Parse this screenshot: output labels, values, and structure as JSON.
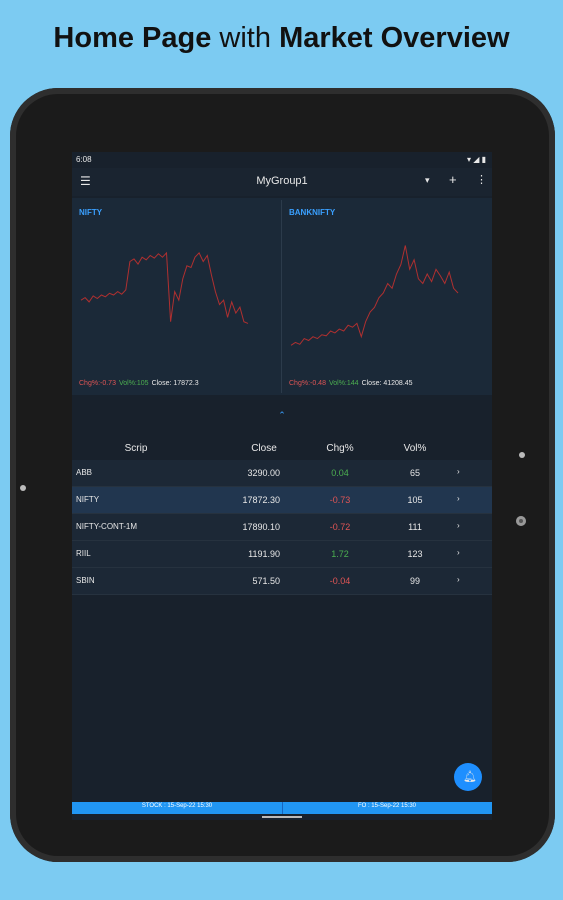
{
  "header": {
    "title_bold_1": "Home Page",
    "title_normal": "with",
    "title_bold_2": "Market Overview"
  },
  "status_bar": {
    "time": "6:08"
  },
  "app_bar": {
    "title": "MyGroup1"
  },
  "charts": [
    {
      "name": "NIFTY",
      "chg": "Chg%:-0.73",
      "vol": "Vol%:105",
      "close": "Close: 17872.3",
      "ylim": [
        0,
        100
      ],
      "points": [
        30,
        33,
        28,
        35,
        32,
        36,
        34,
        38,
        36,
        40,
        37,
        42,
        75,
        78,
        72,
        80,
        77,
        82,
        79,
        84,
        80,
        85,
        5,
        40,
        30,
        55,
        70,
        68,
        80,
        85,
        75,
        82,
        60,
        40,
        25,
        30,
        10,
        28,
        15,
        22,
        5,
        3
      ]
    },
    {
      "name": "BANKNIFTY",
      "chg": "Chg%:-0.48",
      "vol": "Vol%:144",
      "close": "Close: 41208.45",
      "ylim": [
        0,
        120
      ],
      "points": [
        5,
        8,
        6,
        12,
        10,
        14,
        12,
        16,
        15,
        20,
        18,
        22,
        20,
        26,
        24,
        28,
        14,
        30,
        40,
        45,
        55,
        60,
        70,
        65,
        80,
        90,
        110,
        85,
        95,
        75,
        70,
        80,
        72,
        85,
        78,
        70,
        82,
        65,
        60
      ]
    }
  ],
  "table": {
    "columns": [
      "Scrip",
      "Close",
      "Chg%",
      "Vol%"
    ],
    "rows": [
      [
        "ABB",
        "3290.00",
        "0.04",
        "65"
      ],
      [
        "NIFTY",
        "17872.30",
        "-0.73",
        "105"
      ],
      [
        "NIFTY-CONT-1M",
        "17890.10",
        "-0.72",
        "111"
      ],
      [
        "RIIL",
        "1191.90",
        "1.72",
        "123"
      ],
      [
        "SBIN",
        "571.50",
        "-0.04",
        "99"
      ]
    ]
  },
  "footer": {
    "stock": "STOCK : 15-Sep-22  15:30",
    "fo": "FO : 15-Sep-22  15:30"
  }
}
